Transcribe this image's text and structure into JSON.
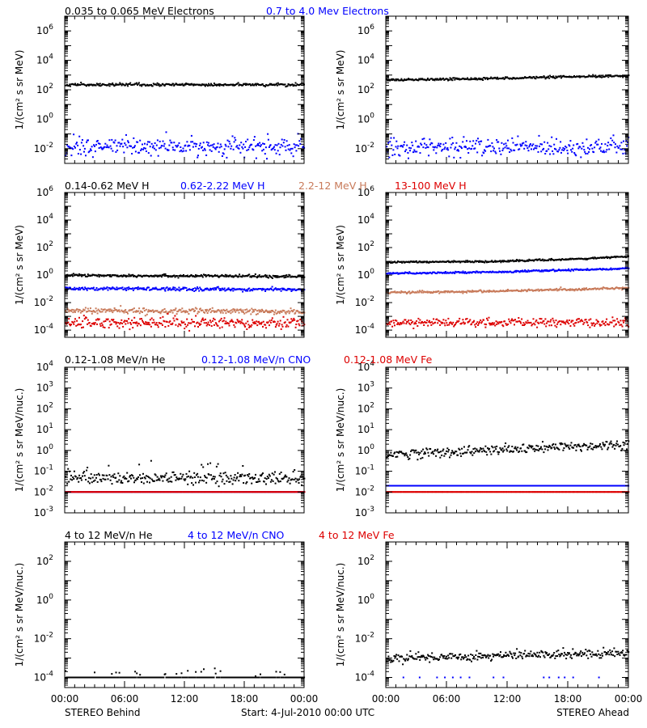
{
  "figure": {
    "footer_left": "STEREO Behind",
    "footer_center": "Start:  4-Jul-2010 00:00 UTC",
    "footer_right": "STEREO Ahead"
  },
  "colors": {
    "black": "#000000",
    "blue": "#0000ff",
    "tan": "#c87a5a",
    "red": "#dd0000"
  },
  "chart_data": [
    {
      "type": "scatter",
      "spacecraft": "STEREO Behind",
      "ylabel": "1/(cm² s sr MeV)",
      "yscale": "log",
      "ylim": [
        0.001,
        10000000
      ],
      "ytick_exponents": [
        -2,
        0,
        2,
        4,
        6
      ],
      "xlim": [
        0,
        24
      ],
      "xticks": [
        "00:00",
        "06:00",
        "12:00",
        "18:00",
        "00:00"
      ],
      "series_legend": [
        "0.035 to 0.065 MeV Electrons",
        "0.7 to 4.0 Mev Electrons"
      ],
      "series": [
        {
          "color": "#000000",
          "trend": [
            [
              0,
              250
            ],
            [
              24,
              250
            ]
          ],
          "scatter": 0.05
        },
        {
          "color": "#0000ff",
          "trend": [
            [
              0,
              0.015
            ],
            [
              24,
              0.015
            ]
          ],
          "scatter": 0.3
        }
      ]
    },
    {
      "type": "scatter",
      "spacecraft": "STEREO Ahead",
      "ylabel": "1/(cm² s sr MeV)",
      "yscale": "log",
      "ylim": [
        0.001,
        10000000
      ],
      "ytick_exponents": [
        -2,
        0,
        2,
        4,
        6
      ],
      "xlim": [
        0,
        24
      ],
      "xticks": [
        "00:00",
        "06:00",
        "12:00",
        "18:00",
        "00:00"
      ],
      "series": [
        {
          "color": "#000000",
          "trend": [
            [
              0,
              500
            ],
            [
              24,
              1000
            ]
          ],
          "scatter": 0.04
        },
        {
          "color": "#0000ff",
          "trend": [
            [
              0,
              0.015
            ],
            [
              24,
              0.015
            ]
          ],
          "scatter": 0.3
        }
      ]
    },
    {
      "type": "scatter",
      "spacecraft": "STEREO Behind",
      "ylabel": "1/(cm² s sr MeV)",
      "yscale": "log",
      "ylim": [
        3e-05,
        1000000
      ],
      "ytick_exponents": [
        -4,
        -2,
        0,
        2,
        4,
        6
      ],
      "xlim": [
        0,
        24
      ],
      "xticks": [
        "00:00",
        "06:00",
        "12:00",
        "18:00",
        "00:00"
      ],
      "series_legend": [
        "0.14-0.62 MeV H",
        "0.62-2.22 MeV H",
        "2.2-12 MeV H",
        "13-100 MeV H"
      ],
      "series": [
        {
          "color": "#000000",
          "trend": [
            [
              0,
              1.1
            ],
            [
              24,
              0.9
            ]
          ],
          "scatter": 0.05
        },
        {
          "color": "#0000ff",
          "trend": [
            [
              0,
              0.12
            ],
            [
              24,
              0.1
            ]
          ],
          "scatter": 0.06
        },
        {
          "color": "#c87a5a",
          "trend": [
            [
              0,
              0.003
            ],
            [
              24,
              0.0025
            ]
          ],
          "scatter": 0.1
        },
        {
          "color": "#dd0000",
          "trend": [
            [
              0,
              0.0004
            ],
            [
              24,
              0.0004
            ]
          ],
          "scatter": 0.2
        }
      ]
    },
    {
      "type": "scatter",
      "spacecraft": "STEREO Ahead",
      "ylabel": "1/(cm² s sr MeV)",
      "yscale": "log",
      "ylim": [
        3e-05,
        1000000
      ],
      "ytick_exponents": [
        -4,
        -2,
        0,
        2,
        4,
        6
      ],
      "xlim": [
        0,
        24
      ],
      "xticks": [
        "00:00",
        "06:00",
        "12:00",
        "18:00",
        "00:00"
      ],
      "series": [
        {
          "color": "#000000",
          "trend": [
            [
              0,
              10
            ],
            [
              10,
              11
            ],
            [
              17,
              15
            ],
            [
              24,
              25
            ]
          ],
          "scatter": 0.03
        },
        {
          "color": "#0000ff",
          "trend": [
            [
              0,
              1.5
            ],
            [
              12,
              2
            ],
            [
              24,
              3.5
            ]
          ],
          "scatter": 0.03
        },
        {
          "color": "#c87a5a",
          "trend": [
            [
              0,
              0.06
            ],
            [
              12,
              0.08
            ],
            [
              24,
              0.13
            ]
          ],
          "scatter": 0.04
        },
        {
          "color": "#dd0000",
          "trend": [
            [
              0,
              0.0004
            ],
            [
              24,
              0.0004
            ]
          ],
          "scatter": 0.15
        }
      ]
    },
    {
      "type": "scatter",
      "spacecraft": "STEREO Behind",
      "ylabel": "1/(cm² s sr MeV/nuc.)",
      "yscale": "log",
      "ylim": [
        0.001,
        10000
      ],
      "ytick_exponents": [
        -3,
        -2,
        -1,
        0,
        1,
        2,
        3,
        4
      ],
      "xlim": [
        0,
        24
      ],
      "xticks": [
        "00:00",
        "06:00",
        "12:00",
        "18:00",
        "00:00"
      ],
      "series_legend": [
        "0.12-1.08 MeV/n He",
        "0.12-1.08 MeV/n CNO",
        "0.12-1.08 MeV Fe"
      ],
      "series": [
        {
          "color": "#000000",
          "trend": [
            [
              0,
              0.05
            ],
            [
              24,
              0.05
            ]
          ],
          "scatter": 0.15,
          "outliers": [
            0.1,
            0.2
          ]
        },
        {
          "color": "#0000ff",
          "trend": [
            [
              0,
              0.011
            ],
            [
              24,
              0.011
            ]
          ],
          "scatter": 0.0
        },
        {
          "color": "#dd0000",
          "trend": [
            [
              0,
              0.011
            ],
            [
              24,
              0.011
            ]
          ],
          "scatter": 0.0
        }
      ]
    },
    {
      "type": "scatter",
      "spacecraft": "STEREO Ahead",
      "ylabel": "1/(cm² s sr MeV/nuc.)",
      "yscale": "log",
      "ylim": [
        0.001,
        10000
      ],
      "ytick_exponents": [
        -3,
        -2,
        -1,
        0,
        1,
        2,
        3,
        4
      ],
      "xlim": [
        0,
        24
      ],
      "xticks": [
        "00:00",
        "06:00",
        "12:00",
        "18:00",
        "00:00"
      ],
      "series": [
        {
          "color": "#000000",
          "trend": [
            [
              0,
              0.7
            ],
            [
              12,
              1.2
            ],
            [
              24,
              2.2
            ]
          ],
          "scatter": 0.12
        },
        {
          "color": "#0000ff",
          "trend": [
            [
              0,
              0.022
            ],
            [
              24,
              0.022
            ]
          ],
          "scatter": 0.0
        },
        {
          "color": "#dd0000",
          "trend": [
            [
              0,
              0.011
            ],
            [
              24,
              0.011
            ]
          ],
          "scatter": 0.0
        }
      ]
    },
    {
      "type": "scatter",
      "spacecraft": "STEREO Behind",
      "ylabel": "1/(cm² s sr MeV/nuc.)",
      "yscale": "log",
      "ylim": [
        3e-05,
        1000
      ],
      "ytick_exponents": [
        -4,
        -2,
        0,
        2
      ],
      "xlim": [
        0,
        24
      ],
      "xticks": [
        "00:00",
        "06:00",
        "12:00",
        "18:00",
        "00:00"
      ],
      "series_legend": [
        "4 to 12 MeV/n He",
        "4 to 12 MeV/n CNO",
        "4 to 12 MeV Fe"
      ],
      "series": [
        {
          "color": "#000000",
          "trend": [
            [
              0,
              0.00011
            ],
            [
              24,
              0.00011
            ]
          ],
          "scatter": 0.0,
          "outliers": [
            0.00022
          ]
        }
      ]
    },
    {
      "type": "scatter",
      "spacecraft": "STEREO Ahead",
      "ylabel": "1/(cm² s sr MeV/nuc.)",
      "yscale": "log",
      "ylim": [
        3e-05,
        1000
      ],
      "ytick_exponents": [
        -4,
        -2,
        0,
        2
      ],
      "xlim": [
        0,
        24
      ],
      "xticks": [
        "00:00",
        "06:00",
        "12:00",
        "18:00",
        "00:00"
      ],
      "series": [
        {
          "color": "#000000",
          "trend": [
            [
              0,
              0.0011
            ],
            [
              12,
              0.0015
            ],
            [
              24,
              0.0022
            ]
          ],
          "scatter": 0.12
        },
        {
          "color": "#0000ff",
          "trend": [
            [
              0,
              0.00011
            ],
            [
              24,
              0.00011
            ]
          ],
          "scatter": 0.0,
          "sparse": true
        }
      ]
    }
  ]
}
